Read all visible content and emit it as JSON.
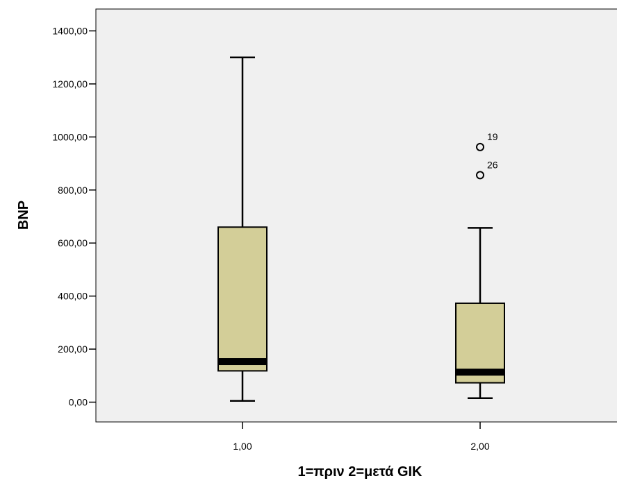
{
  "chart_data": {
    "type": "boxplot",
    "xlabel": "1=πριν 2=μετά GIK",
    "ylabel": "BNP",
    "ylim": [
      -60,
      1500
    ],
    "yticks": [
      0,
      200,
      400,
      600,
      800,
      1000,
      1200,
      1400
    ],
    "ytick_labels": [
      "0,00",
      "200,00",
      "400,00",
      "600,00",
      "800,00",
      "1000,00",
      "1200,00",
      "1400,00"
    ],
    "categories": [
      "1,00",
      "2,00"
    ],
    "boxes": [
      {
        "category": "1,00",
        "whisker_low": 5,
        "q1": 118,
        "median": 153,
        "q3": 660,
        "whisker_high": 1300,
        "outliers": []
      },
      {
        "category": "2,00",
        "whisker_low": 15,
        "q1": 73,
        "median": 113,
        "q3": 373,
        "whisker_high": 657,
        "outliers": [
          {
            "value": 962,
            "label": "19"
          },
          {
            "value": 856,
            "label": "26"
          }
        ]
      }
    ],
    "grid": false,
    "background_color": "#f0f0f0",
    "box_fill_color": "#d3ce98",
    "line_color": "#000000"
  }
}
